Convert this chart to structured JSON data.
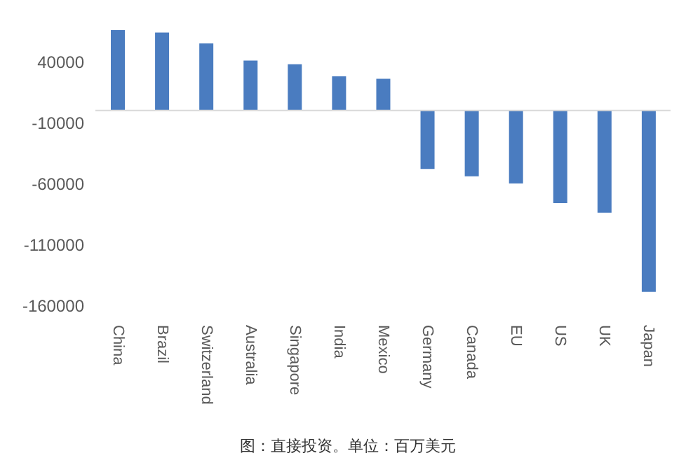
{
  "chart_data": {
    "type": "bar",
    "categories": [
      "China",
      "Brazil",
      "Switzerland",
      "Australia",
      "Singapore",
      "India",
      "Mexico",
      "Germany",
      "Canada",
      "EU",
      "US",
      "UK",
      "Japan"
    ],
    "values": [
      66000,
      64000,
      55000,
      41000,
      38000,
      28000,
      26000,
      -48000,
      -54000,
      -60000,
      -76000,
      -84000,
      -149000
    ],
    "color": "#4a7cc0",
    "ylim": [
      -160000,
      70000
    ],
    "yticks": [
      40000,
      -10000,
      -60000,
      -110000,
      -160000
    ],
    "grid": false,
    "annotations": [
      "图：直接投资。单位：百万美元"
    ]
  }
}
